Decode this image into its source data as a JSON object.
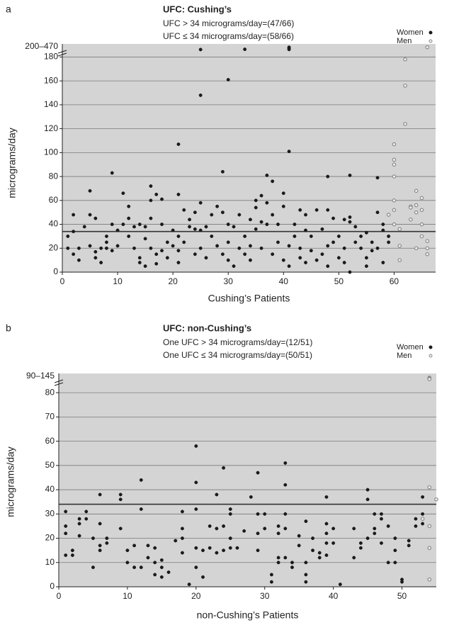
{
  "chart_data": [
    {
      "type": "scatter",
      "panel_label": "a",
      "title": "UFC: Cushing’s",
      "subtitle": [
        "UFC > 34 micrograms/day=(47/66)",
        "UFC ≤ 34 micrograms/day=(58/66)"
      ],
      "x_label": "Cushing’s Patients",
      "y_label": "micrograms/day",
      "break_label": "200–470",
      "xlim": [
        0,
        67.5
      ],
      "ylim": [
        0,
        470
      ],
      "axis_break": [
        185,
        200
      ],
      "xticks": [
        0,
        10,
        20,
        30,
        40,
        50,
        60
      ],
      "yticks": [
        0,
        20,
        40,
        60,
        80,
        100,
        120,
        140,
        160,
        180
      ],
      "threshold": 34,
      "grid": true,
      "legend": "upper right",
      "series": [
        {
          "name": "Women",
          "color": "#1a1a1a",
          "marker": "filled",
          "x": [
            1,
            1,
            2,
            2,
            2,
            3,
            3,
            4,
            5,
            5,
            5,
            6,
            6,
            6,
            7,
            7,
            8,
            8,
            8,
            9,
            9,
            9,
            10,
            10,
            11,
            11,
            12,
            12,
            12,
            13,
            13,
            14,
            14,
            14,
            15,
            15,
            15,
            16,
            16,
            16,
            16,
            17,
            17,
            17,
            18,
            18,
            18,
            19,
            19,
            20,
            20,
            21,
            21,
            21,
            21,
            21,
            22,
            22,
            23,
            23,
            24,
            24,
            24,
            25,
            25,
            25,
            25,
            25,
            26,
            26,
            27,
            27,
            28,
            28,
            29,
            29,
            29,
            30,
            30,
            30,
            30,
            31,
            31,
            32,
            32,
            33,
            33,
            33,
            34,
            34,
            34,
            35,
            35,
            35,
            36,
            36,
            36,
            37,
            37,
            37,
            38,
            38,
            38,
            39,
            39,
            40,
            40,
            40,
            41,
            41,
            41,
            41,
            41,
            41,
            42,
            42,
            43,
            43,
            43,
            44,
            44,
            44,
            45,
            45,
            46,
            46,
            47,
            47,
            48,
            48,
            48,
            48,
            49,
            49,
            50,
            50,
            51,
            51,
            51,
            52,
            52,
            52,
            52,
            53,
            53,
            54,
            54,
            55,
            55,
            55,
            56,
            56,
            57,
            57,
            57,
            58,
            58,
            58,
            59,
            59
          ],
          "values": [
            20,
            30,
            15,
            34,
            48,
            10,
            20,
            38,
            48,
            68,
            22,
            12,
            45,
            17,
            8,
            20,
            30,
            25,
            20,
            83,
            40,
            18,
            35,
            22,
            66,
            40,
            55,
            30,
            45,
            38,
            20,
            8,
            12,
            40,
            28,
            38,
            5,
            72,
            60,
            45,
            20,
            15,
            65,
            7,
            18,
            40,
            61,
            25,
            12,
            22,
            35,
            107,
            65,
            30,
            8,
            18,
            52,
            25,
            44,
            38,
            36,
            50,
            15,
            205,
            148,
            58,
            35,
            20,
            38,
            12,
            48,
            30,
            55,
            22,
            84,
            50,
            15,
            161,
            40,
            25,
            10,
            38,
            5,
            48,
            20,
            220,
            30,
            15,
            44,
            22,
            10,
            60,
            54,
            36,
            64,
            20,
            42,
            81,
            58,
            40,
            76,
            48,
            15,
            40,
            25,
            66,
            55,
            10,
            350,
            270,
            210,
            101,
            22,
            5,
            40,
            30,
            52,
            20,
            12,
            48,
            35,
            8,
            30,
            18,
            52,
            10,
            36,
            15,
            80,
            52,
            22,
            5,
            45,
            25,
            30,
            12,
            44,
            20,
            8,
            81,
            46,
            42,
            0,
            38,
            25,
            20,
            30,
            33,
            12,
            5,
            25,
            18,
            79,
            50,
            20,
            35,
            40,
            8,
            25,
            30
          ]
        },
        {
          "name": "Men",
          "color": "#8a8a8a",
          "marker": "open",
          "x": [
            59,
            60,
            60,
            60,
            60,
            60,
            60,
            60,
            61,
            61,
            61,
            62,
            62,
            62,
            63,
            63,
            63,
            64,
            64,
            64,
            64,
            65,
            65,
            65,
            65,
            66,
            66,
            66,
            66
          ],
          "values": [
            48,
            107,
            94,
            90,
            80,
            60,
            52,
            40,
            36,
            22,
            10,
            178,
            156,
            124,
            55,
            44,
            54,
            68,
            56,
            50,
            20,
            62,
            52,
            40,
            30,
            350,
            26,
            20,
            15
          ]
        }
      ]
    },
    {
      "type": "scatter",
      "panel_label": "b",
      "title": "UFC: non-Cushing’s",
      "subtitle": [
        "One UFC > 34 micrograms/day=(12/51)",
        "One UFC ≤ 34 micrograms/day=(50/51)"
      ],
      "x_label": "non-Cushing’s Patients",
      "y_label": "micrograms/day",
      "break_label": "90–145",
      "xlim": [
        0,
        55
      ],
      "ylim": [
        0,
        145
      ],
      "axis_break": [
        85,
        90
      ],
      "xticks": [
        0,
        10,
        20,
        30,
        40,
        50
      ],
      "yticks": [
        0,
        10,
        20,
        30,
        40,
        50,
        60,
        70,
        80
      ],
      "threshold": 34,
      "grid": true,
      "legend": "upper right",
      "series": [
        {
          "name": "Women",
          "color": "#1a1a1a",
          "marker": "filled",
          "x": [
            1,
            1,
            1,
            1,
            2,
            2,
            3,
            3,
            3,
            4,
            4,
            5,
            5,
            6,
            6,
            6,
            6,
            7,
            7,
            9,
            9,
            9,
            10,
            10,
            11,
            11,
            12,
            12,
            12,
            13,
            13,
            14,
            14,
            14,
            15,
            15,
            15,
            16,
            17,
            18,
            18,
            18,
            18,
            19,
            20,
            20,
            20,
            20,
            20,
            21,
            21,
            22,
            22,
            23,
            23,
            23,
            24,
            24,
            24,
            25,
            25,
            25,
            25,
            26,
            27,
            28,
            29,
            29,
            29,
            29,
            30,
            30,
            31,
            31,
            32,
            32,
            32,
            32,
            33,
            33,
            33,
            33,
            33,
            34,
            34,
            35,
            35,
            36,
            36,
            36,
            36,
            37,
            37,
            38,
            38,
            39,
            39,
            39,
            39,
            39,
            40,
            40,
            41,
            43,
            43,
            44,
            44,
            45,
            45,
            45,
            46,
            46,
            46,
            47,
            47,
            47,
            48,
            48,
            49,
            49,
            49,
            50,
            50,
            51,
            51,
            52,
            52,
            53,
            53,
            53
          ],
          "values": [
            31,
            25,
            22,
            13,
            15,
            13,
            28,
            26,
            21,
            31,
            28,
            20,
            8,
            38,
            26,
            17,
            15,
            20,
            18,
            38,
            36,
            24,
            15,
            10,
            17,
            8,
            44,
            32,
            8,
            17,
            12,
            16,
            10,
            5,
            11,
            8,
            4,
            6,
            19,
            31,
            24,
            20,
            14,
            1,
            58,
            43,
            32,
            16,
            8,
            15,
            4,
            16,
            25,
            38,
            24,
            14,
            49,
            25,
            15,
            32,
            30,
            20,
            16,
            16,
            23,
            37,
            47,
            30,
            22,
            15,
            30,
            24,
            5,
            2,
            25,
            22,
            12,
            10,
            51,
            42,
            30,
            24,
            12,
            10,
            8,
            21,
            17,
            27,
            10,
            5,
            2,
            20,
            15,
            14,
            12,
            37,
            26,
            22,
            18,
            13,
            24,
            18,
            1,
            24,
            12,
            18,
            16,
            40,
            36,
            20,
            30,
            24,
            22,
            30,
            28,
            18,
            25,
            10,
            20,
            15,
            10,
            3,
            2,
            19,
            17,
            28,
            25,
            37,
            30,
            26
          ]
        },
        {
          "name": "Men",
          "color": "#8a8a8a",
          "marker": "open",
          "x": [
            53,
            54,
            54,
            54,
            54,
            54,
            54,
            54,
            54,
            55
          ],
          "values": [
            28,
            110,
            100,
            95,
            90,
            41,
            16,
            3,
            25,
            36
          ]
        }
      ]
    }
  ]
}
